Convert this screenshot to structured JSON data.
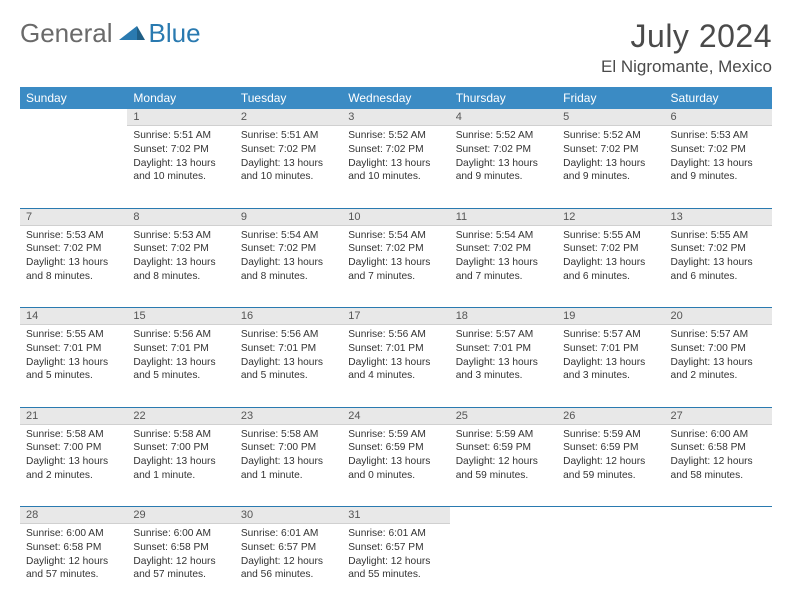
{
  "brand": {
    "part1": "General",
    "part2": "Blue"
  },
  "title": "July 2024",
  "location": "El Nigromante, Mexico",
  "colors": {
    "header_bg": "#3b8bc4",
    "header_fg": "#ffffff",
    "daynum_bg": "#e8e8e8",
    "rule": "#2a7ab0",
    "logo_gray": "#6a6a6a",
    "logo_blue": "#2a7ab0"
  },
  "weekdays": [
    "Sunday",
    "Monday",
    "Tuesday",
    "Wednesday",
    "Thursday",
    "Friday",
    "Saturday"
  ],
  "weeks": [
    [
      {
        "n": "",
        "lines": []
      },
      {
        "n": "1",
        "lines": [
          "Sunrise: 5:51 AM",
          "Sunset: 7:02 PM",
          "Daylight: 13 hours",
          "and 10 minutes."
        ]
      },
      {
        "n": "2",
        "lines": [
          "Sunrise: 5:51 AM",
          "Sunset: 7:02 PM",
          "Daylight: 13 hours",
          "and 10 minutes."
        ]
      },
      {
        "n": "3",
        "lines": [
          "Sunrise: 5:52 AM",
          "Sunset: 7:02 PM",
          "Daylight: 13 hours",
          "and 10 minutes."
        ]
      },
      {
        "n": "4",
        "lines": [
          "Sunrise: 5:52 AM",
          "Sunset: 7:02 PM",
          "Daylight: 13 hours",
          "and 9 minutes."
        ]
      },
      {
        "n": "5",
        "lines": [
          "Sunrise: 5:52 AM",
          "Sunset: 7:02 PM",
          "Daylight: 13 hours",
          "and 9 minutes."
        ]
      },
      {
        "n": "6",
        "lines": [
          "Sunrise: 5:53 AM",
          "Sunset: 7:02 PM",
          "Daylight: 13 hours",
          "and 9 minutes."
        ]
      }
    ],
    [
      {
        "n": "7",
        "lines": [
          "Sunrise: 5:53 AM",
          "Sunset: 7:02 PM",
          "Daylight: 13 hours",
          "and 8 minutes."
        ]
      },
      {
        "n": "8",
        "lines": [
          "Sunrise: 5:53 AM",
          "Sunset: 7:02 PM",
          "Daylight: 13 hours",
          "and 8 minutes."
        ]
      },
      {
        "n": "9",
        "lines": [
          "Sunrise: 5:54 AM",
          "Sunset: 7:02 PM",
          "Daylight: 13 hours",
          "and 8 minutes."
        ]
      },
      {
        "n": "10",
        "lines": [
          "Sunrise: 5:54 AM",
          "Sunset: 7:02 PM",
          "Daylight: 13 hours",
          "and 7 minutes."
        ]
      },
      {
        "n": "11",
        "lines": [
          "Sunrise: 5:54 AM",
          "Sunset: 7:02 PM",
          "Daylight: 13 hours",
          "and 7 minutes."
        ]
      },
      {
        "n": "12",
        "lines": [
          "Sunrise: 5:55 AM",
          "Sunset: 7:02 PM",
          "Daylight: 13 hours",
          "and 6 minutes."
        ]
      },
      {
        "n": "13",
        "lines": [
          "Sunrise: 5:55 AM",
          "Sunset: 7:02 PM",
          "Daylight: 13 hours",
          "and 6 minutes."
        ]
      }
    ],
    [
      {
        "n": "14",
        "lines": [
          "Sunrise: 5:55 AM",
          "Sunset: 7:01 PM",
          "Daylight: 13 hours",
          "and 5 minutes."
        ]
      },
      {
        "n": "15",
        "lines": [
          "Sunrise: 5:56 AM",
          "Sunset: 7:01 PM",
          "Daylight: 13 hours",
          "and 5 minutes."
        ]
      },
      {
        "n": "16",
        "lines": [
          "Sunrise: 5:56 AM",
          "Sunset: 7:01 PM",
          "Daylight: 13 hours",
          "and 5 minutes."
        ]
      },
      {
        "n": "17",
        "lines": [
          "Sunrise: 5:56 AM",
          "Sunset: 7:01 PM",
          "Daylight: 13 hours",
          "and 4 minutes."
        ]
      },
      {
        "n": "18",
        "lines": [
          "Sunrise: 5:57 AM",
          "Sunset: 7:01 PM",
          "Daylight: 13 hours",
          "and 3 minutes."
        ]
      },
      {
        "n": "19",
        "lines": [
          "Sunrise: 5:57 AM",
          "Sunset: 7:01 PM",
          "Daylight: 13 hours",
          "and 3 minutes."
        ]
      },
      {
        "n": "20",
        "lines": [
          "Sunrise: 5:57 AM",
          "Sunset: 7:00 PM",
          "Daylight: 13 hours",
          "and 2 minutes."
        ]
      }
    ],
    [
      {
        "n": "21",
        "lines": [
          "Sunrise: 5:58 AM",
          "Sunset: 7:00 PM",
          "Daylight: 13 hours",
          "and 2 minutes."
        ]
      },
      {
        "n": "22",
        "lines": [
          "Sunrise: 5:58 AM",
          "Sunset: 7:00 PM",
          "Daylight: 13 hours",
          "and 1 minute."
        ]
      },
      {
        "n": "23",
        "lines": [
          "Sunrise: 5:58 AM",
          "Sunset: 7:00 PM",
          "Daylight: 13 hours",
          "and 1 minute."
        ]
      },
      {
        "n": "24",
        "lines": [
          "Sunrise: 5:59 AM",
          "Sunset: 6:59 PM",
          "Daylight: 13 hours",
          "and 0 minutes."
        ]
      },
      {
        "n": "25",
        "lines": [
          "Sunrise: 5:59 AM",
          "Sunset: 6:59 PM",
          "Daylight: 12 hours",
          "and 59 minutes."
        ]
      },
      {
        "n": "26",
        "lines": [
          "Sunrise: 5:59 AM",
          "Sunset: 6:59 PM",
          "Daylight: 12 hours",
          "and 59 minutes."
        ]
      },
      {
        "n": "27",
        "lines": [
          "Sunrise: 6:00 AM",
          "Sunset: 6:58 PM",
          "Daylight: 12 hours",
          "and 58 minutes."
        ]
      }
    ],
    [
      {
        "n": "28",
        "lines": [
          "Sunrise: 6:00 AM",
          "Sunset: 6:58 PM",
          "Daylight: 12 hours",
          "and 57 minutes."
        ]
      },
      {
        "n": "29",
        "lines": [
          "Sunrise: 6:00 AM",
          "Sunset: 6:58 PM",
          "Daylight: 12 hours",
          "and 57 minutes."
        ]
      },
      {
        "n": "30",
        "lines": [
          "Sunrise: 6:01 AM",
          "Sunset: 6:57 PM",
          "Daylight: 12 hours",
          "and 56 minutes."
        ]
      },
      {
        "n": "31",
        "lines": [
          "Sunrise: 6:01 AM",
          "Sunset: 6:57 PM",
          "Daylight: 12 hours",
          "and 55 minutes."
        ]
      },
      {
        "n": "",
        "lines": []
      },
      {
        "n": "",
        "lines": []
      },
      {
        "n": "",
        "lines": []
      }
    ]
  ]
}
